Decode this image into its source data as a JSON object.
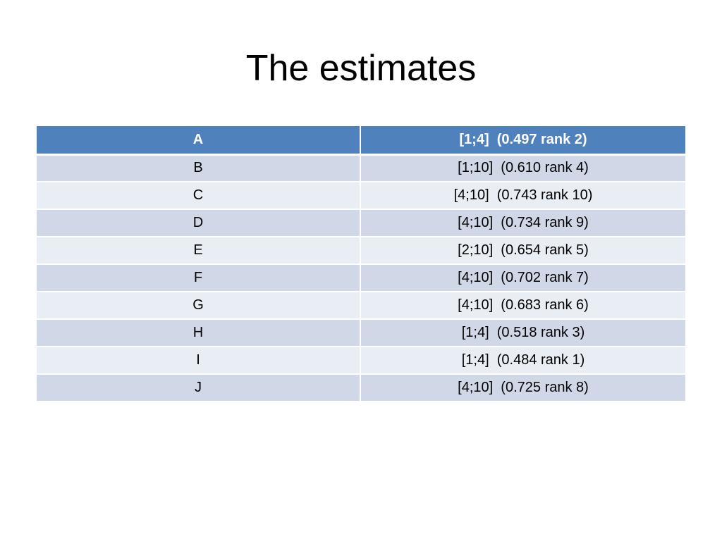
{
  "slide": {
    "title": "The estimates"
  },
  "table": {
    "header": {
      "col1": "A",
      "col2": "[1;4]  (0.497 rank 2)"
    },
    "rows": [
      {
        "label": "B",
        "value": "[1;10]  (0.610 rank 4)"
      },
      {
        "label": "C",
        "value": "[4;10]  (0.743 rank 10)"
      },
      {
        "label": "D",
        "value": "[4;10]  (0.734 rank 9)"
      },
      {
        "label": "E",
        "value": "[2;10]  (0.654 rank 5)"
      },
      {
        "label": "F",
        "value": "[4;10]  (0.702 rank 7)"
      },
      {
        "label": "G",
        "value": "[4;10]  (0.683 rank 6)"
      },
      {
        "label": "H",
        "value": "[1;4]  (0.518 rank 3)"
      },
      {
        "label": "I",
        "value": "[1;4]  (0.484 rank 1)"
      },
      {
        "label": "J",
        "value": "[4;10]  (0.725 rank 8)"
      }
    ]
  },
  "colors": {
    "header_bg": "#4f81bd",
    "row_dark": "#d0d8e8",
    "row_light": "#e9edf4"
  }
}
